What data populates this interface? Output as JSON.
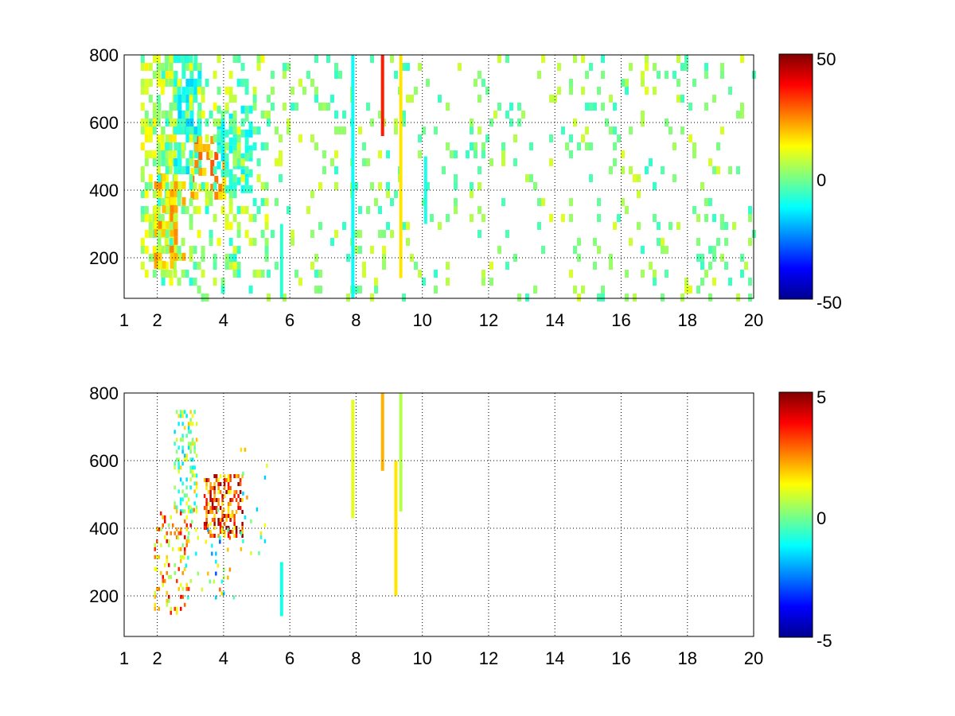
{
  "chart_data": [
    {
      "type": "heatmap",
      "title": "",
      "xlabel": "",
      "ylabel": "",
      "xlim": [
        1,
        20
      ],
      "ylim": [
        80,
        800
      ],
      "x_ticks": [
        1,
        2,
        4,
        6,
        8,
        10,
        12,
        14,
        16,
        18,
        20
      ],
      "x_tick_labels": [
        "1",
        "2",
        "4",
        "6",
        "8",
        "10",
        "12",
        "14",
        "16",
        "18",
        "20"
      ],
      "y_ticks": [
        200,
        400,
        600,
        800
      ],
      "y_tick_labels": [
        "200",
        "400",
        "600",
        "800"
      ],
      "grid": true,
      "colorbar": {
        "colormap": "jet",
        "clim": [
          -50,
          50
        ],
        "tick_labels": [
          "50",
          "0",
          "-50"
        ],
        "ticks": [
          50,
          0,
          -50
        ]
      },
      "clusters": [
        {
          "x": [
            1.5,
            2.5
          ],
          "y": [
            150,
            800
          ],
          "v": [
            -5,
            15
          ],
          "density": 0.55
        },
        {
          "x": [
            1.9,
            2.8
          ],
          "y": [
            180,
            450
          ],
          "v": [
            5,
            25
          ],
          "density": 0.6
        },
        {
          "x": [
            2.5,
            3.3
          ],
          "y": [
            450,
            800
          ],
          "v": [
            -18,
            -5
          ],
          "density": 0.65
        },
        {
          "x": [
            3.0,
            4.0
          ],
          "y": [
            380,
            560
          ],
          "v": [
            10,
            30
          ],
          "density": 0.55
        },
        {
          "x": [
            3.8,
            4.8
          ],
          "y": [
            400,
            650
          ],
          "v": [
            -15,
            -2
          ],
          "density": 0.55
        },
        {
          "x": [
            2.0,
            5.3
          ],
          "y": [
            80,
            800
          ],
          "v": [
            -10,
            12
          ],
          "density": 0.25
        },
        {
          "x": [
            5.3,
            20.0
          ],
          "y": [
            80,
            800
          ],
          "v": [
            -8,
            10
          ],
          "density": 0.11
        }
      ],
      "lines": [
        {
          "x": 7.9,
          "y": [
            80,
            800
          ],
          "value": -12
        },
        {
          "x": 8.8,
          "y": [
            560,
            800
          ],
          "value": 35
        },
        {
          "x": 9.35,
          "y": [
            140,
            800
          ],
          "value": 15
        },
        {
          "x": 5.75,
          "y": [
            80,
            300
          ],
          "value": -8
        },
        {
          "x": 10.1,
          "y": [
            300,
            500
          ],
          "value": -10
        }
      ]
    },
    {
      "type": "heatmap",
      "title": "",
      "xlabel": "",
      "ylabel": "",
      "xlim": [
        1,
        20
      ],
      "ylim": [
        80,
        800
      ],
      "x_ticks": [
        1,
        2,
        4,
        6,
        8,
        10,
        12,
        14,
        16,
        18,
        20
      ],
      "x_tick_labels": [
        "1",
        "2",
        "4",
        "6",
        "8",
        "10",
        "12",
        "14",
        "16",
        "18",
        "20"
      ],
      "y_ticks": [
        200,
        400,
        600,
        800
      ],
      "y_tick_labels": [
        "200",
        "400",
        "600",
        "800"
      ],
      "grid": true,
      "colorbar": {
        "colormap": "jet",
        "clim": [
          -5,
          5
        ],
        "tick_labels": [
          "5",
          "0",
          "-5"
        ],
        "ticks": [
          5,
          0,
          -5
        ]
      },
      "clusters": [
        {
          "x": [
            2.5,
            3.2
          ],
          "y": [
            450,
            750
          ],
          "v": [
            -2,
            2
          ],
          "density": 0.35
        },
        {
          "x": [
            3.4,
            4.6
          ],
          "y": [
            380,
            560
          ],
          "v": [
            1,
            5
          ],
          "density": 0.45
        },
        {
          "x": [
            1.9,
            3.0
          ],
          "y": [
            150,
            450
          ],
          "v": [
            0,
            4
          ],
          "density": 0.2
        },
        {
          "x": [
            2.6,
            4.3
          ],
          "y": [
            200,
            460
          ],
          "v": [
            -3,
            3
          ],
          "density": 0.08
        },
        {
          "x": [
            4.5,
            5.3
          ],
          "y": [
            330,
            650
          ],
          "v": [
            -2,
            3
          ],
          "density": 0.05
        }
      ],
      "lines": [
        {
          "x": 7.9,
          "y": [
            430,
            780
          ],
          "value": 1
        },
        {
          "x": 8.8,
          "y": [
            570,
            800
          ],
          "value": 2
        },
        {
          "x": 9.35,
          "y": [
            450,
            800
          ],
          "value": 0.5
        },
        {
          "x": 9.2,
          "y": [
            200,
            600
          ],
          "value": 1.5
        },
        {
          "x": 5.75,
          "y": [
            140,
            300
          ],
          "value": -1
        }
      ]
    }
  ]
}
